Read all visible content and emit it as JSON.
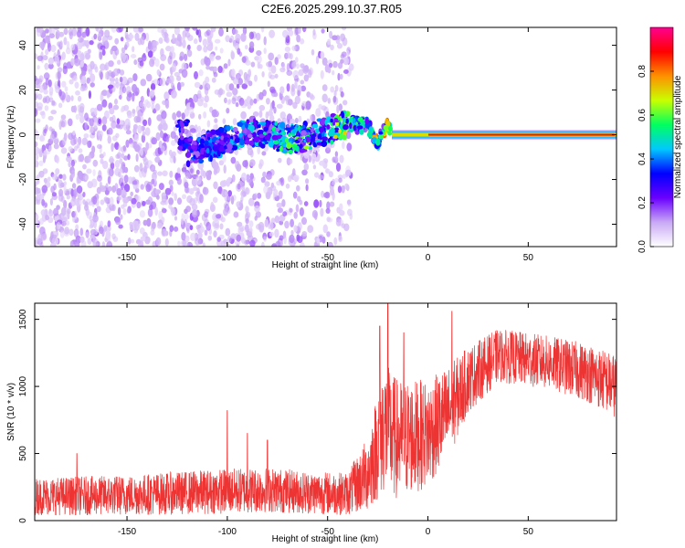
{
  "title": "C2E6.2025.299.10.37.R05",
  "chart_data": [
    {
      "type": "heatmap",
      "xlabel": "Height of straight line (km)",
      "ylabel": "Frequency (Hz)",
      "xlim": [
        -196,
        94
      ],
      "ylim": [
        -50,
        48
      ],
      "xticks": [
        -150,
        -100,
        -50,
        0,
        50
      ],
      "yticks": [
        -40,
        -20,
        0,
        20,
        40
      ],
      "colorbar": {
        "label": "Normalized spectral amplitude",
        "range": [
          0.0,
          1.0
        ],
        "ticks": [
          "0.0",
          "0.2",
          "0.4",
          "0.6",
          "0.8"
        ],
        "colors": [
          "#ffffff",
          "#c9a8f5",
          "#6a00ff",
          "#0000ff",
          "#00c8ff",
          "#00ff60",
          "#c8ff00",
          "#ff9000",
          "#ff0000",
          "#ff0090"
        ]
      },
      "ridge": [
        {
          "x": -120,
          "y": -8
        },
        {
          "x": -105,
          "y": -4
        },
        {
          "x": -90,
          "y": 2
        },
        {
          "x": -70,
          "y": -2
        },
        {
          "x": -60,
          "y": -1
        },
        {
          "x": -50,
          "y": 2
        },
        {
          "x": -40,
          "y": 5
        },
        {
          "x": -30,
          "y": 4
        },
        {
          "x": -25,
          "y": -3
        },
        {
          "x": -20,
          "y": 5
        },
        {
          "x": -18,
          "y": 0
        },
        {
          "x": 0,
          "y": 0
        },
        {
          "x": 94,
          "y": 0
        }
      ],
      "noise_region": {
        "x_from": -196,
        "x_to": -38
      }
    },
    {
      "type": "line",
      "xlabel": "Height of straight line (km)",
      "ylabel": "SNR (10 * v/v)",
      "xlim": [
        -196,
        94
      ],
      "ylim": [
        0,
        1620
      ],
      "xticks": [
        -150,
        -100,
        -50,
        0,
        50
      ],
      "yticks": [
        0,
        500,
        1000,
        1500
      ],
      "color": "#ee3333",
      "envelope": [
        {
          "x": -196,
          "mean": 180,
          "spread": 140
        },
        {
          "x": -150,
          "mean": 190,
          "spread": 150
        },
        {
          "x": -100,
          "mean": 220,
          "spread": 170
        },
        {
          "x": -80,
          "mean": 230,
          "spread": 170
        },
        {
          "x": -60,
          "mean": 210,
          "spread": 160
        },
        {
          "x": -40,
          "mean": 200,
          "spread": 160
        },
        {
          "x": -30,
          "mean": 350,
          "spread": 280
        },
        {
          "x": -22,
          "mean": 700,
          "spread": 500
        },
        {
          "x": -15,
          "mean": 600,
          "spread": 450
        },
        {
          "x": 0,
          "mean": 650,
          "spread": 400
        },
        {
          "x": 10,
          "mean": 800,
          "spread": 350
        },
        {
          "x": 20,
          "mean": 1050,
          "spread": 250
        },
        {
          "x": 35,
          "mean": 1230,
          "spread": 200
        },
        {
          "x": 60,
          "mean": 1180,
          "spread": 200
        },
        {
          "x": 80,
          "mean": 1100,
          "spread": 220
        },
        {
          "x": 94,
          "mean": 1000,
          "spread": 240
        }
      ],
      "spikes": [
        {
          "x": -175,
          "y": 500
        },
        {
          "x": -100,
          "y": 820
        },
        {
          "x": -90,
          "y": 650
        },
        {
          "x": -80,
          "y": 600
        },
        {
          "x": -20,
          "y": 1620
        },
        {
          "x": -24,
          "y": 1450
        },
        {
          "x": -12,
          "y": 1400
        },
        {
          "x": 12,
          "y": 1560
        }
      ]
    }
  ]
}
